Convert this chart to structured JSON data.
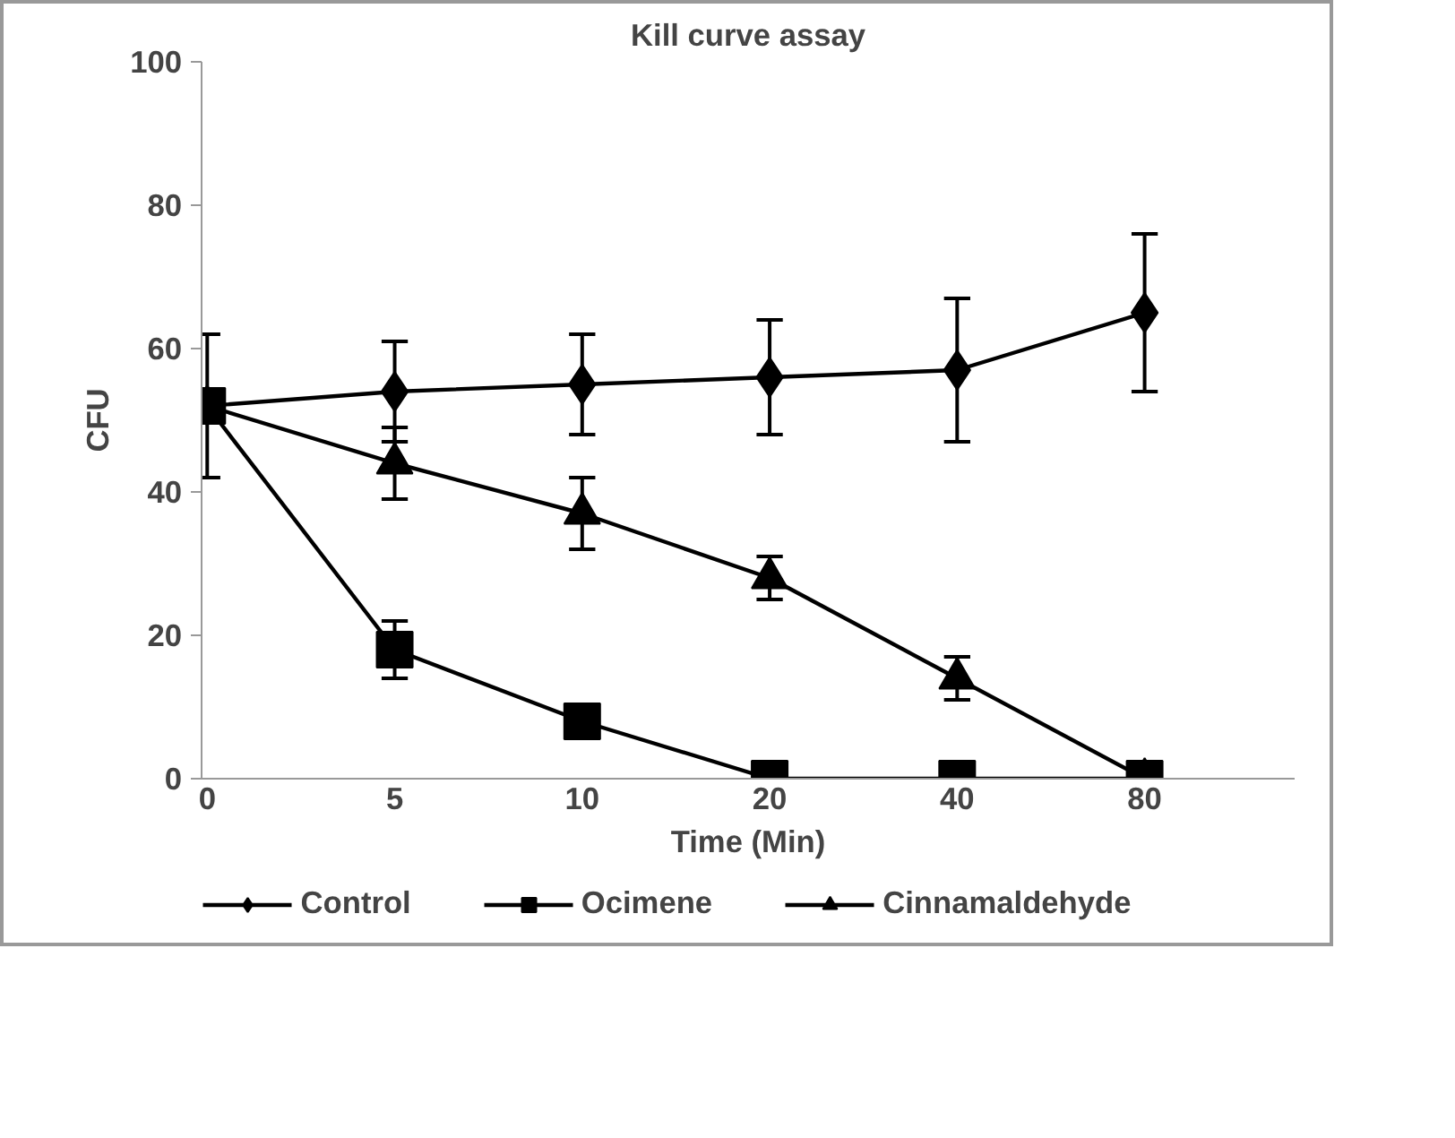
{
  "chart_data": {
    "type": "line",
    "title": "Kill curve assay",
    "xlabel": "Time (Min)",
    "ylabel": "CFU",
    "categories": [
      "0",
      "5",
      "10",
      "20",
      "40",
      "80"
    ],
    "ylim": [
      0,
      100
    ],
    "yticks": [
      0,
      20,
      40,
      60,
      80,
      100
    ],
    "grid": false,
    "legend": "bottom",
    "line_style": "solid",
    "series": [
      {
        "name": "Control",
        "color": "#000000",
        "marker": "diamond",
        "values": [
          52,
          54,
          55,
          56,
          57,
          65
        ],
        "errors": [
          10,
          7,
          7,
          8,
          10,
          11
        ]
      },
      {
        "name": "Ocimene",
        "color": "#000000",
        "marker": "square",
        "values": [
          52,
          18,
          8,
          0,
          0,
          0
        ],
        "errors": [
          null,
          4,
          null,
          null,
          null,
          null
        ]
      },
      {
        "name": "Cinnamaldehyde",
        "color": "#000000",
        "marker": "triangle",
        "values": [
          52,
          44,
          37,
          28,
          14,
          0
        ],
        "errors": [
          null,
          5,
          5,
          3,
          3,
          null
        ]
      }
    ]
  }
}
